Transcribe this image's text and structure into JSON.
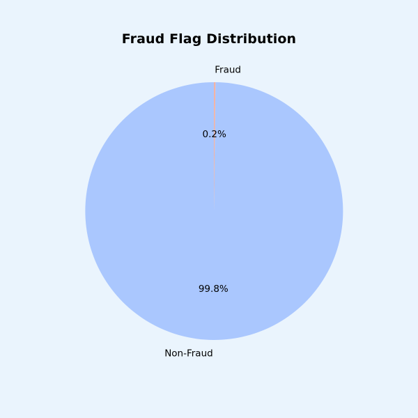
{
  "chart_data": {
    "type": "pie",
    "title": "Fraud Flag Distribution",
    "slices": [
      {
        "label": "Non-Fraud",
        "value": 99.8,
        "pct_label": "99.8%",
        "color": "#aac7fe"
      },
      {
        "label": "Fraud",
        "value": 0.2,
        "pct_label": "0.2%",
        "color": "#f4b3a3"
      }
    ],
    "start_angle_deg": 90,
    "direction": "counterclockwise"
  },
  "colors": {
    "background": "#eaf4fd"
  }
}
